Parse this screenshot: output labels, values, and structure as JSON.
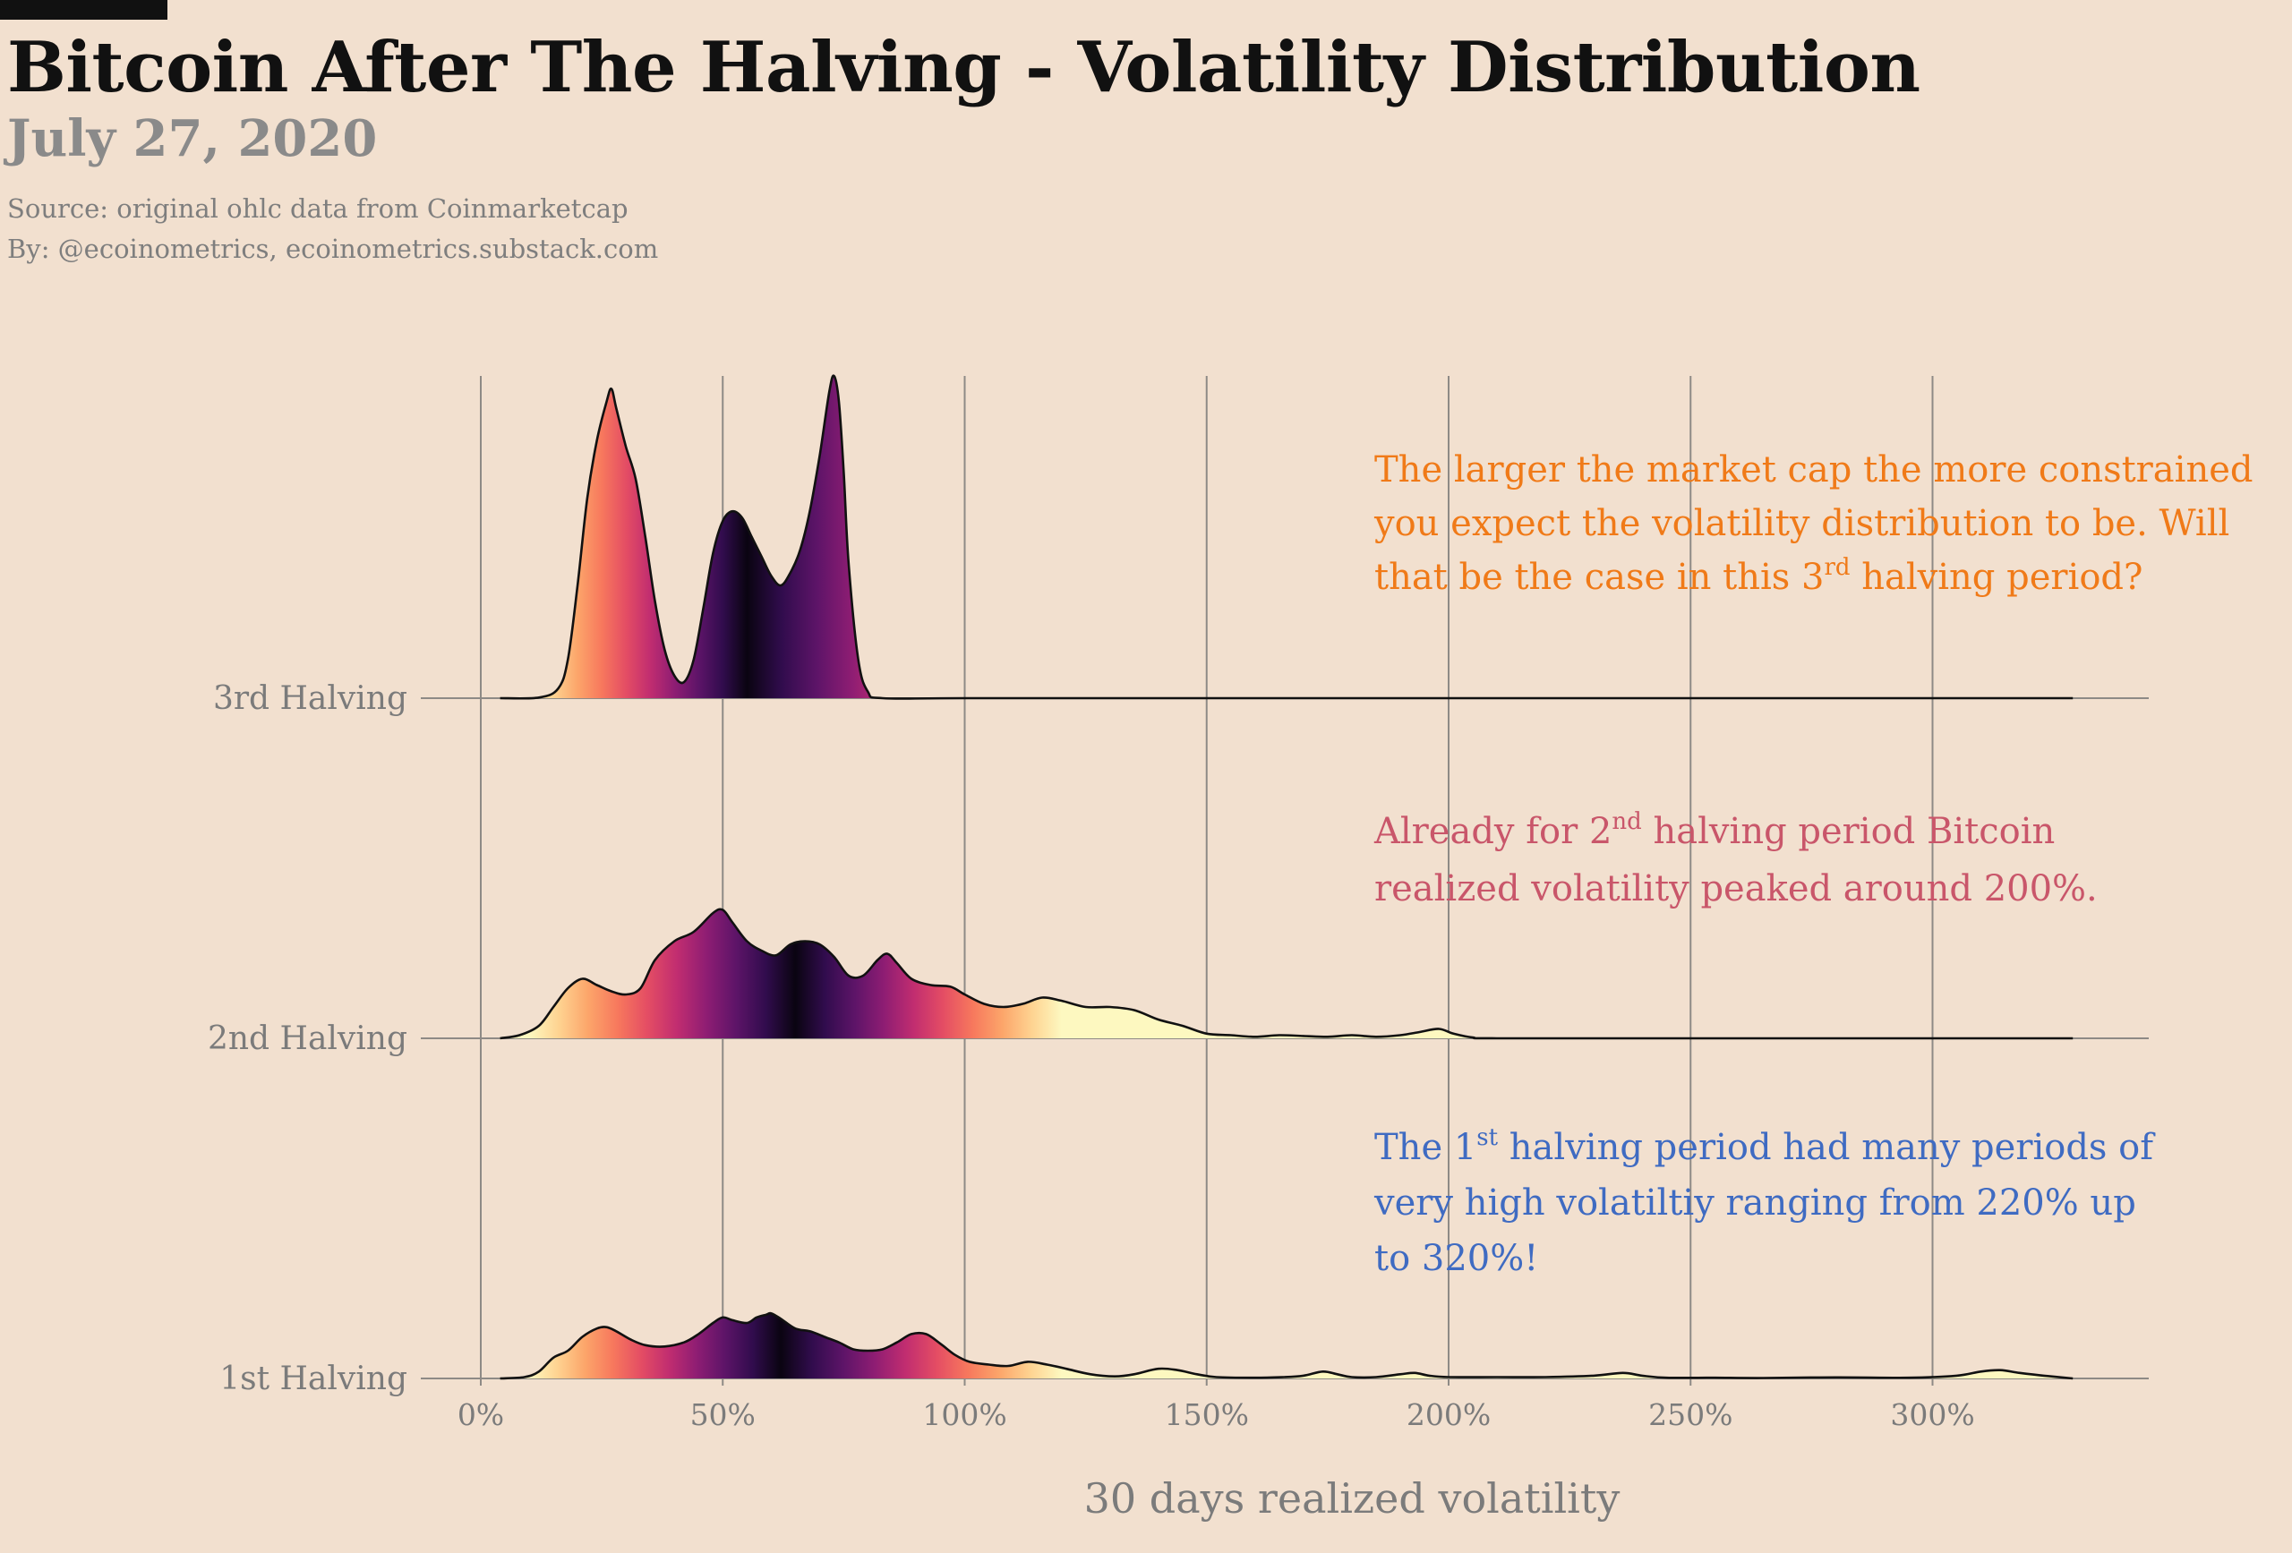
{
  "header": {
    "title": "Bitcoin After The Halving - Volatility Distribution",
    "date": "July 27, 2020",
    "source": "Source: original ohlc data from Coinmarketcap",
    "byline": "By: @ecoinometrics, ecoinometrics.substack.com"
  },
  "chart_data": {
    "type": "ridgeline density",
    "xlabel": "30 days realized volatility",
    "xlim": [
      0,
      345
    ],
    "x_ticks": [
      0,
      50,
      100,
      150,
      200,
      250,
      300
    ],
    "x_tick_labels": [
      "0%",
      "50%",
      "100%",
      "150%",
      "200%",
      "250%",
      "300%"
    ],
    "grid": "vertical",
    "colormap": "magma (reversed, centered on peak)",
    "series": [
      {
        "name": "3rd Halving",
        "x_range": [
          4,
          329
        ],
        "color_center": 55,
        "points": [
          [
            4,
            0
          ],
          [
            12,
            0.002
          ],
          [
            16,
            0.03
          ],
          [
            18,
            0.12
          ],
          [
            20,
            0.35
          ],
          [
            22,
            0.62
          ],
          [
            24,
            0.8
          ],
          [
            26,
            0.92
          ],
          [
            27,
            0.96
          ],
          [
            28,
            0.9
          ],
          [
            30,
            0.78
          ],
          [
            32,
            0.68
          ],
          [
            34,
            0.5
          ],
          [
            36,
            0.3
          ],
          [
            38,
            0.15
          ],
          [
            40,
            0.07
          ],
          [
            42,
            0.05
          ],
          [
            44,
            0.12
          ],
          [
            46,
            0.28
          ],
          [
            48,
            0.45
          ],
          [
            50,
            0.55
          ],
          [
            52,
            0.58
          ],
          [
            54,
            0.56
          ],
          [
            56,
            0.5
          ],
          [
            58,
            0.44
          ],
          [
            60,
            0.38
          ],
          [
            62,
            0.35
          ],
          [
            64,
            0.39
          ],
          [
            66,
            0.46
          ],
          [
            68,
            0.58
          ],
          [
            70,
            0.75
          ],
          [
            72,
            0.95
          ],
          [
            73,
            1.0
          ],
          [
            74,
            0.92
          ],
          [
            75,
            0.7
          ],
          [
            76,
            0.42
          ],
          [
            78,
            0.12
          ],
          [
            80,
            0.02
          ],
          [
            83,
            0
          ],
          [
            100,
            0
          ],
          [
            150,
            0
          ],
          [
            200,
            0
          ],
          [
            250,
            0
          ],
          [
            300,
            0
          ],
          [
            329,
            0
          ]
        ]
      },
      {
        "name": "2nd Halving",
        "x_range": [
          4,
          329
        ],
        "color_center": 65,
        "points": [
          [
            4,
            0
          ],
          [
            8,
            0.02
          ],
          [
            12,
            0.08
          ],
          [
            15,
            0.2
          ],
          [
            18,
            0.32
          ],
          [
            21,
            0.38
          ],
          [
            24,
            0.34
          ],
          [
            27,
            0.3
          ],
          [
            30,
            0.28
          ],
          [
            33,
            0.32
          ],
          [
            36,
            0.5
          ],
          [
            40,
            0.62
          ],
          [
            44,
            0.68
          ],
          [
            48,
            0.8
          ],
          [
            50,
            0.82
          ],
          [
            52,
            0.74
          ],
          [
            55,
            0.62
          ],
          [
            58,
            0.56
          ],
          [
            61,
            0.53
          ],
          [
            64,
            0.6
          ],
          [
            67,
            0.62
          ],
          [
            70,
            0.6
          ],
          [
            73,
            0.52
          ],
          [
            76,
            0.4
          ],
          [
            79,
            0.4
          ],
          [
            82,
            0.5
          ],
          [
            84,
            0.54
          ],
          [
            86,
            0.48
          ],
          [
            89,
            0.38
          ],
          [
            93,
            0.34
          ],
          [
            97,
            0.33
          ],
          [
            100,
            0.28
          ],
          [
            104,
            0.22
          ],
          [
            108,
            0.2
          ],
          [
            112,
            0.22
          ],
          [
            116,
            0.26
          ],
          [
            120,
            0.24
          ],
          [
            125,
            0.2
          ],
          [
            130,
            0.2
          ],
          [
            135,
            0.18
          ],
          [
            140,
            0.12
          ],
          [
            145,
            0.08
          ],
          [
            150,
            0.03
          ],
          [
            155,
            0.02
          ],
          [
            160,
            0.01
          ],
          [
            165,
            0.02
          ],
          [
            170,
            0.015
          ],
          [
            175,
            0.01
          ],
          [
            180,
            0.02
          ],
          [
            185,
            0.01
          ],
          [
            190,
            0.02
          ],
          [
            194,
            0.04
          ],
          [
            198,
            0.06
          ],
          [
            201,
            0.03
          ],
          [
            205,
            0.005
          ],
          [
            210,
            0
          ],
          [
            250,
            0
          ],
          [
            300,
            0
          ],
          [
            329,
            0
          ]
        ]
      },
      {
        "name": "1st Halving",
        "x_range": [
          4,
          329
        ],
        "color_center": 62,
        "points": [
          [
            4,
            0
          ],
          [
            9,
            0.01
          ],
          [
            12,
            0.05
          ],
          [
            15,
            0.15
          ],
          [
            18,
            0.2
          ],
          [
            21,
            0.3
          ],
          [
            24,
            0.36
          ],
          [
            26,
            0.37
          ],
          [
            28,
            0.34
          ],
          [
            31,
            0.28
          ],
          [
            34,
            0.24
          ],
          [
            38,
            0.23
          ],
          [
            42,
            0.26
          ],
          [
            45,
            0.32
          ],
          [
            48,
            0.4
          ],
          [
            50,
            0.44
          ],
          [
            52,
            0.42
          ],
          [
            55,
            0.4
          ],
          [
            57,
            0.44
          ],
          [
            59,
            0.46
          ],
          [
            60,
            0.47
          ],
          [
            62,
            0.43
          ],
          [
            65,
            0.36
          ],
          [
            68,
            0.34
          ],
          [
            71,
            0.3
          ],
          [
            74,
            0.26
          ],
          [
            77,
            0.21
          ],
          [
            80,
            0.2
          ],
          [
            83,
            0.21
          ],
          [
            86,
            0.26
          ],
          [
            89,
            0.32
          ],
          [
            92,
            0.32
          ],
          [
            95,
            0.25
          ],
          [
            98,
            0.17
          ],
          [
            101,
            0.12
          ],
          [
            105,
            0.1
          ],
          [
            109,
            0.09
          ],
          [
            113,
            0.12
          ],
          [
            117,
            0.1
          ],
          [
            121,
            0.07
          ],
          [
            126,
            0.03
          ],
          [
            131,
            0.015
          ],
          [
            135,
            0.03
          ],
          [
            140,
            0.07
          ],
          [
            144,
            0.06
          ],
          [
            148,
            0.03
          ],
          [
            152,
            0.01
          ],
          [
            160,
            0.005
          ],
          [
            166,
            0.01
          ],
          [
            170,
            0.02
          ],
          [
            174,
            0.05
          ],
          [
            177,
            0.03
          ],
          [
            180,
            0.01
          ],
          [
            185,
            0.01
          ],
          [
            190,
            0.03
          ],
          [
            193,
            0.04
          ],
          [
            196,
            0.02
          ],
          [
            200,
            0.01
          ],
          [
            210,
            0.01
          ],
          [
            220,
            0.01
          ],
          [
            230,
            0.02
          ],
          [
            236,
            0.04
          ],
          [
            240,
            0.02
          ],
          [
            245,
            0.005
          ],
          [
            255,
            0.005
          ],
          [
            265,
            0.003
          ],
          [
            280,
            0.008
          ],
          [
            295,
            0.005
          ],
          [
            305,
            0.02
          ],
          [
            310,
            0.05
          ],
          [
            314,
            0.06
          ],
          [
            318,
            0.04
          ],
          [
            323,
            0.02
          ],
          [
            329,
            0
          ]
        ]
      }
    ],
    "annotations": [
      {
        "color": "#f07a18",
        "lines": [
          "The larger the market cap the more constrained",
          "you expect the volatility distribution to be. Will",
          [
            "that be the case in this 3",
            "rd",
            " halving period?"
          ]
        ]
      },
      {
        "color": "#c9566a",
        "lines": [
          [
            "Already for 2",
            "nd",
            " halving period Bitcoin"
          ],
          "realized volatility peaked around 200%."
        ]
      },
      {
        "color": "#3f6bc2",
        "lines": [
          [
            "The 1",
            "st",
            " halving period had many periods of"
          ],
          "very high volatiltiy ranging from 220% up",
          "to 320%!"
        ]
      }
    ]
  }
}
